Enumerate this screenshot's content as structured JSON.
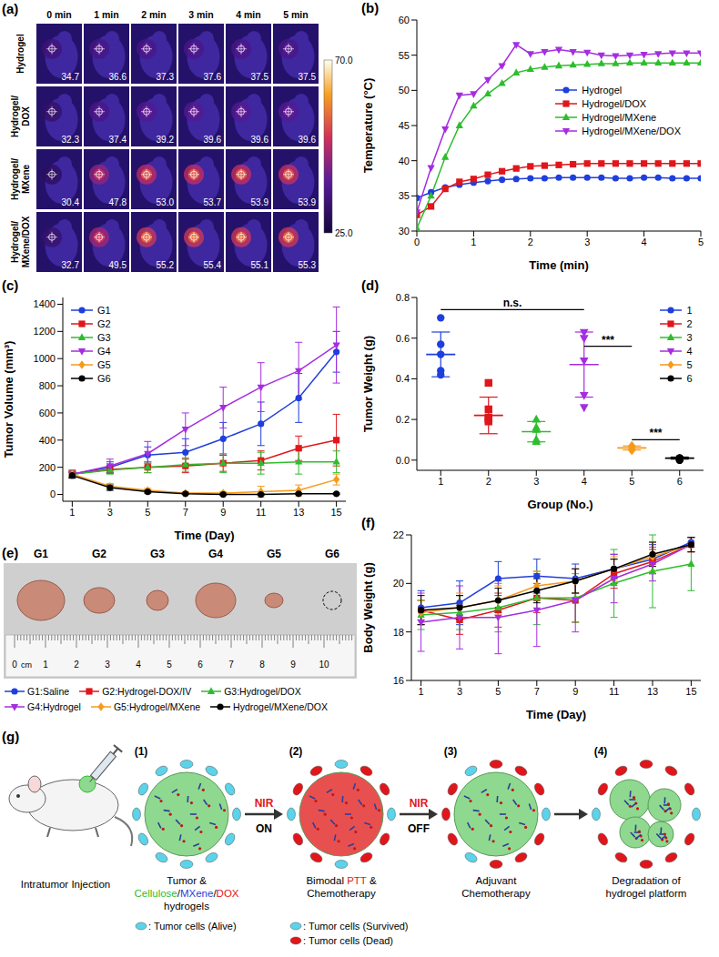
{
  "thermal_images": {
    "panel_label": "(a)",
    "columns": [
      "0 min",
      "1 min",
      "2 min",
      "3 min",
      "4 min",
      "5 min"
    ],
    "rows": [
      {
        "label": "Hydrogel",
        "values": [
          "34.7",
          "36.6",
          "37.3",
          "37.6",
          "37.5",
          "37.5"
        ]
      },
      {
        "label": "Hydrogel/DOX",
        "values": [
          "32.3",
          "37.4",
          "39.2",
          "39.6",
          "39.6",
          "39.6"
        ]
      },
      {
        "label": "Hydrogel/MXene",
        "values": [
          "30.4",
          "47.8",
          "53.0",
          "53.7",
          "53.9",
          "53.9"
        ]
      },
      {
        "label": "Hydrogel/MXene/DOX",
        "values": [
          "32.7",
          "49.5",
          "55.2",
          "55.4",
          "55.1",
          "55.3"
        ]
      }
    ],
    "colorbar": {
      "range": [
        25,
        70
      ],
      "ticks": [
        {
          "value": 70,
          "label": "70.0"
        },
        {
          "value": 25,
          "label": "25.0"
        }
      ]
    }
  },
  "chart_data": [
    {
      "panel_label": "(b)",
      "type": "line",
      "x_label": "Time (min)",
      "y_label": "Temperature (°C)",
      "xlim": [
        0,
        5
      ],
      "xticks": [
        0,
        1,
        2,
        3,
        4,
        5
      ],
      "ylim": [
        30,
        60
      ],
      "yticks": [
        30,
        35,
        40,
        45,
        50,
        55,
        60
      ],
      "legend": "right",
      "x": [
        0,
        0.25,
        0.5,
        0.75,
        1,
        1.25,
        1.5,
        1.75,
        2,
        2.25,
        2.5,
        2.75,
        3,
        3.25,
        3.5,
        3.75,
        4,
        4.25,
        4.5,
        4.75,
        5
      ],
      "series": [
        {
          "name": "Hydrogel",
          "color": "#1f3fdc",
          "marker": "circle",
          "values": [
            34.7,
            35.5,
            36.2,
            36.6,
            36.9,
            37.1,
            37.3,
            37.4,
            37.5,
            37.5,
            37.6,
            37.6,
            37.6,
            37.6,
            37.5,
            37.5,
            37.6,
            37.6,
            37.5,
            37.5,
            37.5
          ]
        },
        {
          "name": "Hydrogel/DOX",
          "color": "#e0161b",
          "marker": "square",
          "values": [
            32.3,
            33.5,
            36,
            37,
            37.4,
            38,
            38.5,
            38.9,
            39.2,
            39.3,
            39.4,
            39.5,
            39.6,
            39.6,
            39.6,
            39.6,
            39.6,
            39.6,
            39.6,
            39.6,
            39.6
          ]
        },
        {
          "name": "Hydrogel/MXene",
          "color": "#2dbd2d",
          "marker": "triangle-up",
          "values": [
            30.4,
            35,
            40.5,
            45,
            47.8,
            49.5,
            51,
            52.5,
            53,
            53.3,
            53.5,
            53.6,
            53.7,
            53.8,
            53.8,
            53.9,
            53.9,
            53.9,
            53.9,
            53.9,
            53.9
          ]
        },
        {
          "name": "Hydrogel/MXene/DOX",
          "color": "#a52de0",
          "marker": "triangle-down",
          "values": [
            32.7,
            39,
            44.5,
            49.3,
            49.5,
            51.5,
            53.5,
            56.5,
            55.2,
            55.5,
            55.8,
            55.5,
            55.4,
            55,
            54.9,
            55,
            55.1,
            55.2,
            55.3,
            55.3,
            55.3
          ]
        }
      ]
    },
    {
      "panel_label": "(c)",
      "type": "line",
      "x_label": "Time (Day)",
      "y_label": "Tumor Volume (mm³)",
      "xlim": [
        0.5,
        15.5
      ],
      "xticks": [
        1,
        3,
        5,
        7,
        9,
        11,
        13,
        15
      ],
      "ylim": [
        -50,
        1450
      ],
      "yticks": [
        0,
        200,
        400,
        600,
        800,
        1000,
        1200,
        1400
      ],
      "legend": "upper left",
      "x": [
        1,
        3,
        5,
        7,
        9,
        11,
        13,
        15
      ],
      "series": [
        {
          "name": "G1",
          "color": "#1f3fdc",
          "marker": "circle",
          "values": [
            150,
            200,
            290,
            310,
            410,
            520,
            710,
            1050
          ],
          "errors": [
            20,
            40,
            60,
            100,
            120,
            160,
            180,
            150
          ]
        },
        {
          "name": "G2",
          "color": "#e0161b",
          "marker": "square",
          "values": [
            150,
            185,
            200,
            210,
            230,
            250,
            340,
            400
          ],
          "errors": [
            20,
            30,
            40,
            50,
            60,
            70,
            90,
            190
          ]
        },
        {
          "name": "G3",
          "color": "#2dbd2d",
          "marker": "triangle-up",
          "values": [
            150,
            180,
            200,
            220,
            230,
            230,
            240,
            240
          ],
          "errors": [
            20,
            30,
            40,
            50,
            70,
            80,
            90,
            80
          ]
        },
        {
          "name": "G4",
          "color": "#a52de0",
          "marker": "triangle-down",
          "values": [
            150,
            210,
            300,
            480,
            640,
            790,
            910,
            1100
          ],
          "errors": [
            30,
            50,
            90,
            120,
            150,
            180,
            210,
            280
          ]
        },
        {
          "name": "G5",
          "color": "#f59a1a",
          "marker": "diamond",
          "values": [
            150,
            60,
            30,
            10,
            10,
            20,
            30,
            110
          ],
          "errors": [
            20,
            20,
            15,
            10,
            10,
            40,
            40,
            40
          ]
        },
        {
          "name": "G6",
          "color": "#000000",
          "marker": "circle",
          "values": [
            140,
            50,
            20,
            5,
            0,
            0,
            5,
            5
          ],
          "errors": [
            20,
            20,
            10,
            5,
            5,
            5,
            5,
            5
          ]
        }
      ]
    },
    {
      "panel_label": "(d)",
      "type": "scatter",
      "x_label": "Group (No.)",
      "y_label": "Tumor Weight (g)",
      "xlim": [
        0.5,
        6.5
      ],
      "xticks": [
        1,
        2,
        3,
        4,
        5,
        6
      ],
      "ylim": [
        -0.05,
        0.8
      ],
      "yticks": [
        {
          "value": 0,
          "label": "0.0"
        },
        0.2,
        0.4,
        0.6,
        0.8
      ],
      "legend": "upper right",
      "series": [
        {
          "name": "1",
          "color": "#1f3fdc",
          "marker": "circle",
          "x": 1,
          "values": [
            0.7,
            0.57,
            0.52,
            0.44,
            0.42
          ],
          "mean": 0.52,
          "sd": 0.11
        },
        {
          "name": "2",
          "color": "#e0161b",
          "marker": "square",
          "x": 2,
          "values": [
            0.38,
            0.25,
            0.21,
            0.2,
            0.19
          ],
          "mean": 0.22,
          "sd": 0.09
        },
        {
          "name": "3",
          "color": "#2dbd2d",
          "marker": "triangle-up",
          "x": 3,
          "values": [
            0.2,
            0.16,
            0.15,
            0.1,
            0.09
          ],
          "mean": 0.14,
          "sd": 0.05
        },
        {
          "name": "4",
          "color": "#a52de0",
          "marker": "triangle-down",
          "x": 4,
          "values": [
            0.63,
            0.6,
            0.49,
            0.32,
            0.26
          ],
          "mean": 0.47,
          "sd": 0.16
        },
        {
          "name": "5",
          "color": "#f59a1a",
          "marker": "diamond",
          "x": 5,
          "values": [
            0.07,
            0.06,
            0.06,
            0.05,
            0.05
          ],
          "mean": 0.06,
          "sd": 0.01
        },
        {
          "name": "6",
          "color": "#000000",
          "marker": "circle",
          "x": 6,
          "values": [
            0.01,
            0.01,
            0.01,
            0,
            0
          ],
          "mean": 0.01,
          "sd": 0.005
        }
      ],
      "annotations": [
        {
          "text": "n.s.",
          "x": [
            1,
            4
          ],
          "y": 0.74
        },
        {
          "text": "***",
          "x": [
            4,
            5
          ],
          "y": 0.56
        },
        {
          "text": "***",
          "x": [
            5,
            6
          ],
          "y": 0.1
        }
      ]
    },
    {
      "panel_label": "(f)",
      "type": "line",
      "x_label": "Time (Day)",
      "y_label": "Body Weight (g)",
      "xlim": [
        0.5,
        15.5
      ],
      "xticks": [
        1,
        3,
        5,
        7,
        9,
        11,
        13,
        15
      ],
      "ylim": [
        16,
        22
      ],
      "yticks": [
        16,
        18,
        20,
        22
      ],
      "x": [
        1,
        3,
        5,
        7,
        9,
        11,
        13,
        15
      ],
      "series": [
        {
          "color": "#1f3fdc",
          "marker": "circle",
          "values": [
            19.0,
            19.2,
            20.2,
            20.3,
            20.2,
            20.6,
            21.0,
            21.7
          ],
          "errors": [
            0.7,
            0.9,
            0.7,
            0.7,
            0.6,
            0.6,
            0.6,
            0.2
          ]
        },
        {
          "color": "#e0161b",
          "marker": "square",
          "values": [
            18.9,
            18.5,
            18.9,
            19.4,
            19.3,
            20.4,
            20.9,
            21.6
          ],
          "errors": [
            0.4,
            0.6,
            0.7,
            0.6,
            0.9,
            0.6,
            0.5,
            0.3
          ]
        },
        {
          "color": "#2dbd2d",
          "marker": "triangle-up",
          "values": [
            18.7,
            18.8,
            19.0,
            19.4,
            19.4,
            20.0,
            20.5,
            20.8
          ],
          "errors": [
            0.6,
            0.7,
            1.0,
            1.1,
            1.0,
            1.4,
            1.5,
            1.1
          ]
        },
        {
          "color": "#a52de0",
          "marker": "triangle-down",
          "values": [
            18.4,
            18.6,
            18.6,
            18.9,
            19.3,
            20.2,
            20.8,
            21.6
          ],
          "errors": [
            1.2,
            1.3,
            1.5,
            1.5,
            1.3,
            1.0,
            0.7,
            0.3
          ]
        },
        {
          "color": "#f59a1a",
          "marker": "diamond",
          "values": [
            18.8,
            19.0,
            19.3,
            19.9,
            20.1,
            20.6,
            21.1,
            21.6
          ],
          "errors": [
            0.5,
            0.6,
            0.6,
            0.6,
            0.5,
            0.5,
            0.6,
            0.3
          ]
        },
        {
          "color": "#000000",
          "marker": "circle",
          "values": [
            18.9,
            19.0,
            19.3,
            19.7,
            20.1,
            20.6,
            21.2,
            21.6
          ],
          "errors": [
            0.6,
            0.5,
            0.5,
            0.5,
            0.5,
            0.4,
            0.5,
            0.3
          ]
        }
      ]
    }
  ],
  "photo": {
    "panel_label": "(e)",
    "labels": [
      "G1",
      "G2",
      "G3",
      "G4",
      "G5",
      "G6"
    ],
    "ruler_unit": "cm",
    "ruler_labels": [
      "0",
      "1",
      "2",
      "3",
      "4",
      "5",
      "6",
      "7",
      "8",
      "9",
      "10"
    ]
  },
  "group_legend": {
    "labels": [
      "G1:Saline",
      "G2:Hydrogel-DOX/IV",
      "G3:Hydrogel/DOX",
      "G4:Hydrogel",
      "G5:Hydrogel/MXene",
      "Hydrogel/MXene/DOX"
    ]
  },
  "diagram": {
    "panel_label": "(g)",
    "injection": "Intratumor Injection",
    "steps": [
      {
        "number": "(1)",
        "color": "#8fd88f",
        "caption": [
          [
            {
              "text": "Tumor &"
            }
          ],
          [
            {
              "text": "Cellulose",
              "color": "#2dbd2d"
            },
            {
              "text": "/"
            },
            {
              "text": "MXene",
              "color": "#1f3fdc"
            },
            {
              "text": "/"
            },
            {
              "text": "DOX",
              "color": "#e0161b"
            }
          ],
          [
            {
              "text": "hydrogels"
            }
          ]
        ],
        "keys": [
          {
            "text": ": Tumor cells (Alive)",
            "color": "#5bd3ea"
          }
        ]
      },
      {
        "number": "(2)",
        "color": "#e85050",
        "caption": [
          [
            {
              "text": "Bimodal "
            },
            {
              "text": "PTT",
              "color": "#e0161b"
            },
            {
              "text": " &"
            }
          ],
          [
            {
              "text": "Chemotherapy"
            }
          ]
        ],
        "keys": [
          {
            "text": ": Tumor cells (Survived)",
            "color": "#5bd3ea"
          },
          {
            "text": ": Tumor cells (Dead)",
            "color": "#e0161b"
          }
        ]
      },
      {
        "number": "(3)",
        "color": "#8fd88f",
        "caption": [
          [
            {
              "text": "Adjuvant"
            }
          ],
          [
            {
              "text": "Chemotherapy"
            }
          ]
        ]
      },
      {
        "number": "(4)",
        "color": "#8fd88f",
        "caption": [
          [
            {
              "text": "Degradation of"
            }
          ],
          [
            {
              "text": "hydrogel platform"
            }
          ]
        ]
      }
    ],
    "arrows": [
      {
        "top": "NIR",
        "bottom": "ON"
      },
      {
        "top": "NIR",
        "bottom": "OFF"
      },
      null
    ]
  }
}
